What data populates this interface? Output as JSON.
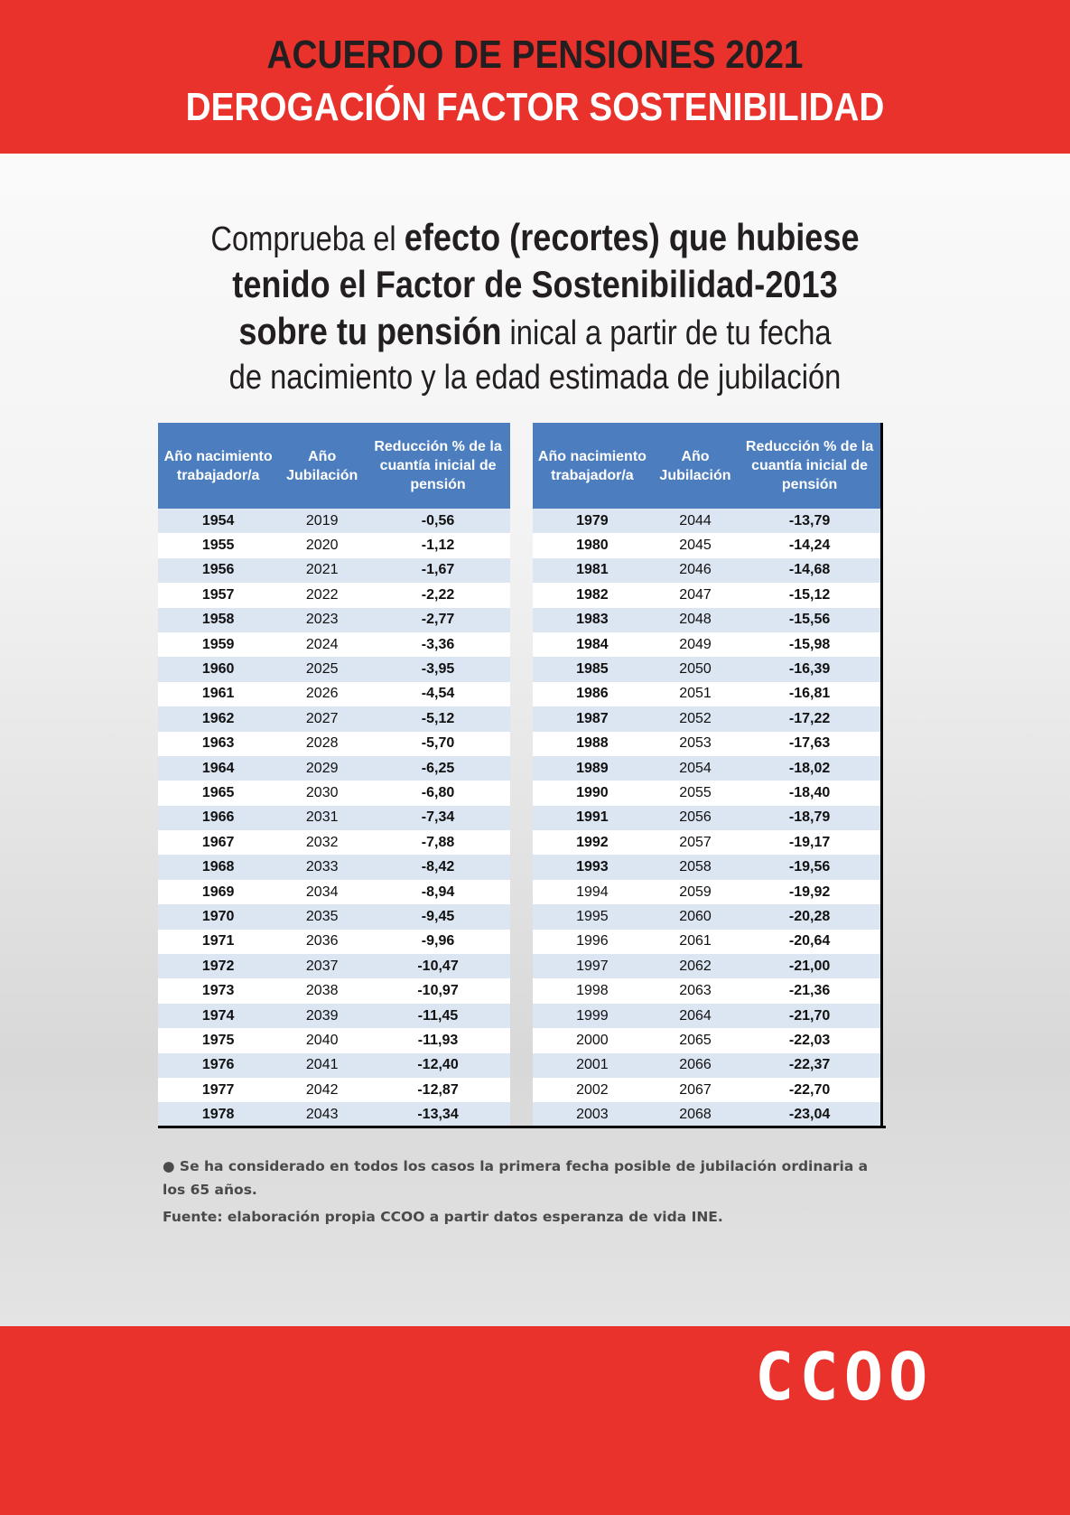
{
  "header": {
    "title": "ACUERDO DE PENSIONES 2021",
    "subtitle": "DEROGACIÓN FACTOR SOSTENIBILIDAD"
  },
  "intro": {
    "lines": [
      [
        {
          "text": "Comprueba el ",
          "bold": false
        },
        {
          "text": "efecto (recortes) que hubiese",
          "bold": true
        }
      ],
      [
        {
          "text": "tenido el Factor de Sostenibilidad-2013",
          "bold": true
        }
      ],
      [
        {
          "text": "sobre tu pensión",
          "bold": true
        },
        {
          "text": " inical a partir de tu fecha",
          "bold": false
        }
      ],
      [
        {
          "text": "de nacimiento y la edad estimada de jubilación",
          "bold": false
        }
      ]
    ]
  },
  "table": {
    "columns": [
      "Año nacimiento trabajador/a",
      "Año Jubilación",
      "Reducción % de la cuantía inicial de pensión"
    ],
    "left_rows": [
      [
        "1954",
        "2019",
        "-0,56"
      ],
      [
        "1955",
        "2020",
        "-1,12"
      ],
      [
        "1956",
        "2021",
        "-1,67"
      ],
      [
        "1957",
        "2022",
        "-2,22"
      ],
      [
        "1958",
        "2023",
        "-2,77"
      ],
      [
        "1959",
        "2024",
        "-3,36"
      ],
      [
        "1960",
        "2025",
        "-3,95"
      ],
      [
        "1961",
        "2026",
        "-4,54"
      ],
      [
        "1962",
        "2027",
        "-5,12"
      ],
      [
        "1963",
        "2028",
        "-5,70"
      ],
      [
        "1964",
        "2029",
        "-6,25"
      ],
      [
        "1965",
        "2030",
        "-6,80"
      ],
      [
        "1966",
        "2031",
        "-7,34"
      ],
      [
        "1967",
        "2032",
        "-7,88"
      ],
      [
        "1968",
        "2033",
        "-8,42"
      ],
      [
        "1969",
        "2034",
        "-8,94"
      ],
      [
        "1970",
        "2035",
        "-9,45"
      ],
      [
        "1971",
        "2036",
        "-9,96"
      ],
      [
        "1972",
        "2037",
        "-10,47"
      ],
      [
        "1973",
        "2038",
        "-10,97"
      ],
      [
        "1974",
        "2039",
        "-11,45"
      ],
      [
        "1975",
        "2040",
        "-11,93"
      ],
      [
        "1976",
        "2041",
        "-12,40"
      ],
      [
        "1977",
        "2042",
        "-12,87"
      ],
      [
        "1978",
        "2043",
        "-13,34"
      ]
    ],
    "right_rows": [
      [
        "1979",
        "2044",
        "-13,79"
      ],
      [
        "1980",
        "2045",
        "-14,24"
      ],
      [
        "1981",
        "2046",
        "-14,68"
      ],
      [
        "1982",
        "2047",
        "-15,12"
      ],
      [
        "1983",
        "2048",
        "-15,56"
      ],
      [
        "1984",
        "2049",
        "-15,98"
      ],
      [
        "1985",
        "2050",
        "-16,39"
      ],
      [
        "1986",
        "2051",
        "-16,81"
      ],
      [
        "1987",
        "2052",
        "-17,22"
      ],
      [
        "1988",
        "2053",
        "-17,63"
      ],
      [
        "1989",
        "2054",
        "-18,02"
      ],
      [
        "1990",
        "2055",
        "-18,40"
      ],
      [
        "1991",
        "2056",
        "-18,79"
      ],
      [
        "1992",
        "2057",
        "-19,17"
      ],
      [
        "1993",
        "2058",
        "-19,56"
      ],
      [
        "1994",
        "2059",
        "-19,92"
      ],
      [
        "1995",
        "2060",
        "-20,28"
      ],
      [
        "1996",
        "2061",
        "-20,64"
      ],
      [
        "1997",
        "2062",
        "-21,00"
      ],
      [
        "1998",
        "2063",
        "-21,36"
      ],
      [
        "1999",
        "2064",
        "-21,70"
      ],
      [
        "2000",
        "2065",
        "-22,03"
      ],
      [
        "2001",
        "2066",
        "-22,37"
      ],
      [
        "2002",
        "2067",
        "-22,70"
      ],
      [
        "2003",
        "2068",
        "-23,04"
      ]
    ]
  },
  "notes": {
    "bullet": "Se ha considerado en todos los casos la primera fecha posible de jubilación ordinaria a los 65 años.",
    "source": "Fuente: elaboración propia CCOO a partir datos esperanza de vida INE."
  },
  "footer": {
    "logo": "CCOO"
  }
}
